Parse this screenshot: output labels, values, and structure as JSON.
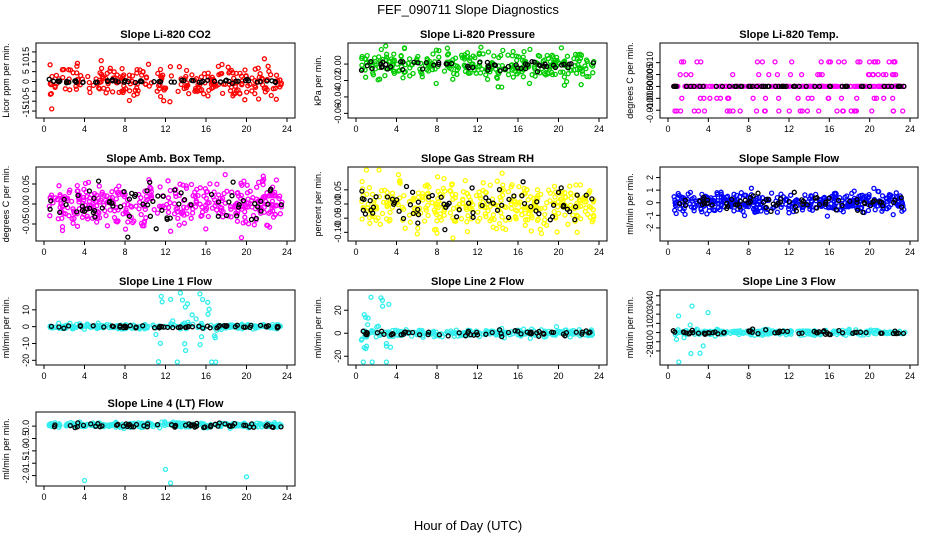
{
  "figure": {
    "title": "FEF_090711  Slope Diagnostics",
    "xlabel": "Hour of Day (UTC)"
  },
  "chart_data": [
    {
      "type": "scatter",
      "title": "Slope Li-820 CO2",
      "ylabel": "Licor ppm per min.",
      "color": "#ff0000",
      "xlim": [
        0,
        24
      ],
      "xticks": [
        0,
        4,
        8,
        12,
        16,
        20,
        24
      ],
      "ylim": [
        -17,
        18
      ],
      "yticks": [
        -15,
        -10,
        -5,
        0,
        5,
        10,
        15
      ],
      "ytick_labels": [
        "-15",
        "-10",
        "-5",
        "0",
        "5",
        "10",
        "15"
      ],
      "series": [
        {
          "color": "#ff0000",
          "baseline": 0,
          "spread": 4,
          "count": 260
        },
        {
          "color": "#000000",
          "baseline": 0,
          "spread": 0.4,
          "count": 60
        }
      ]
    },
    {
      "type": "scatter",
      "title": "Slope Li-820 Pressure",
      "ylabel": "kPa per min.",
      "color": "#00cc00",
      "xlim": [
        0,
        24
      ],
      "xticks": [
        0,
        4,
        8,
        12,
        16,
        20,
        24
      ],
      "ylim": [
        -0.062,
        0.022
      ],
      "yticks": [
        -0.06,
        -0.04,
        -0.02,
        0.0
      ],
      "ytick_labels": [
        "-0.06",
        "-0.04",
        "-0.02",
        "0.00"
      ],
      "series": [
        {
          "color": "#00cc00",
          "baseline": -0.002,
          "spread": 0.009,
          "count": 320
        },
        {
          "color": "#000000",
          "baseline": -0.002,
          "spread": 0.003,
          "count": 60
        }
      ]
    },
    {
      "type": "scatter",
      "title": "Slope Li-820 Temp.",
      "ylabel": "degrees C per min.",
      "color": "#ff00ff",
      "xlim": [
        0,
        24
      ],
      "xticks": [
        0,
        4,
        8,
        12,
        16,
        20,
        24
      ],
      "ylim": [
        -0.012,
        0.017
      ],
      "yticks": [
        -0.01,
        -0.005,
        0,
        0.005,
        0.01
      ],
      "ytick_labels": [
        "-0.010",
        "-0.005",
        "0.000",
        "0.005",
        "0.010"
      ],
      "series": [
        {
          "color": "#ff00ff",
          "baseline": 0,
          "spread": 0,
          "count": 320,
          "levels": [
            -0.005,
            0.005,
            0.0103,
            -0.0103
          ]
        },
        {
          "color": "#000000",
          "baseline": 0,
          "spread": 0,
          "count": 60
        }
      ]
    },
    {
      "type": "scatter",
      "title": "Slope Amb. Box Temp.",
      "ylabel": "degrees C per min.",
      "color": "#ff00ff",
      "xlim": [
        0,
        24
      ],
      "xticks": [
        0,
        4,
        8,
        12,
        16,
        20,
        24
      ],
      "ylim": [
        -0.085,
        0.085
      ],
      "yticks": [
        -0.05,
        0,
        0.05
      ],
      "ytick_labels": [
        "-0.05",
        "0.00",
        "0.05"
      ],
      "series": [
        {
          "color": "#ff00ff",
          "baseline": 0,
          "spread": 0.028,
          "count": 380
        },
        {
          "color": "#000000",
          "baseline": 0,
          "spread": 0.022,
          "count": 70
        }
      ]
    },
    {
      "type": "scatter",
      "title": "Slope Gas Stream RH",
      "ylabel": "percent per min.",
      "color": "#ffff00",
      "xlim": [
        0,
        24
      ],
      "xticks": [
        0,
        4,
        8,
        12,
        16,
        20,
        24
      ],
      "ylim": [
        -0.12,
        0.12
      ],
      "yticks": [
        -0.1,
        -0.05,
        0,
        0.05
      ],
      "ytick_labels": [
        "-0.10",
        "-0.05",
        "0.00",
        "0.05"
      ],
      "series": [
        {
          "color": "#ffff00",
          "baseline": 0,
          "spread": 0.04,
          "count": 380
        },
        {
          "color": "#000000",
          "baseline": 0,
          "spread": 0.03,
          "count": 70
        }
      ]
    },
    {
      "type": "scatter",
      "title": "Slope Sample Flow",
      "ylabel": "ml/min per min.",
      "color": "#0000ff",
      "xlim": [
        0,
        24
      ],
      "xticks": [
        0,
        4,
        8,
        12,
        16,
        20,
        24
      ],
      "ylim": [
        -2.8,
        2.6
      ],
      "yticks": [
        -2,
        -1,
        0,
        1,
        2
      ],
      "ytick_labels": [
        "-2",
        "-1",
        "0",
        "1",
        "2"
      ],
      "series": [
        {
          "color": "#0000ff",
          "baseline": 0,
          "spread": 0.4,
          "count": 380
        },
        {
          "color": "#000000",
          "baseline": 0,
          "spread": 0.3,
          "count": 70
        }
      ]
    },
    {
      "type": "scatter",
      "title": "Slope Line 1 Flow",
      "ylabel": "ml/min per min.",
      "color": "#33eeee",
      "xlim": [
        0,
        24
      ],
      "xticks": [
        0,
        4,
        8,
        12,
        16,
        20,
        24
      ],
      "ylim": [
        -21,
        20
      ],
      "yticks": [
        -20,
        -10,
        0,
        10
      ],
      "ytick_labels": [
        "-20",
        "-10",
        "0",
        "10"
      ],
      "series": [
        {
          "color": "#33eeee",
          "baseline": 0,
          "spread": 0.8,
          "count": 260,
          "burst": [
            11,
            17,
            12
          ]
        },
        {
          "color": "#000000",
          "baseline": 0,
          "spread": 0.5,
          "count": 60
        }
      ]
    },
    {
      "type": "scatter",
      "title": "Slope Line 2 Flow",
      "ylabel": "ml/min per min.",
      "color": "#33eeee",
      "xlim": [
        0,
        24
      ],
      "xticks": [
        0,
        4,
        8,
        12,
        16,
        20,
        24
      ],
      "ylim": [
        -25,
        35
      ],
      "yticks": [
        -20,
        0,
        20
      ],
      "ytick_labels": [
        "-20",
        "0",
        "20"
      ],
      "series": [
        {
          "color": "#33eeee",
          "baseline": 0,
          "spread": 1.5,
          "count": 260,
          "burst": [
            0.5,
            3.5,
            18
          ]
        },
        {
          "color": "#000000",
          "baseline": 0,
          "spread": 1.2,
          "count": 60
        }
      ]
    },
    {
      "type": "scatter",
      "title": "Slope Line 3 Flow",
      "ylabel": "ml/min per min.",
      "color": "#33eeee",
      "xlim": [
        0,
        24
      ],
      "xticks": [
        0,
        4,
        8,
        12,
        16,
        20,
        24
      ],
      "ylim": [
        -32,
        43
      ],
      "yticks": [
        -20,
        -10,
        0,
        10,
        20,
        30,
        40
      ],
      "ytick_labels": [
        "-20",
        "-10",
        "0",
        "10",
        "20",
        "30",
        "40"
      ],
      "series": [
        {
          "color": "#33eeee",
          "baseline": 0,
          "spread": 1.5,
          "count": 260,
          "burst": [
            0.5,
            4,
            20
          ]
        },
        {
          "color": "#000000",
          "baseline": 0,
          "spread": 1.2,
          "count": 60
        }
      ]
    },
    {
      "type": "scatter",
      "title": "Slope Line 4 (LT) Flow",
      "ylabel": "ml/min per min.",
      "color": "#33eeee",
      "xlim": [
        0,
        24
      ],
      "xticks": [
        0,
        4,
        8,
        12,
        16,
        20,
        24
      ],
      "ylim": [
        -2.3,
        0.45
      ],
      "yticks": [
        -2,
        -1.5,
        -1,
        -0.5,
        0
      ],
      "ytick_labels": [
        "-2.0",
        "-1.5",
        "-1.0",
        "-0.5",
        "0.0"
      ],
      "series": [
        {
          "color": "#33eeee",
          "baseline": 0.05,
          "spread": 0.05,
          "count": 300
        },
        {
          "color": "#000000",
          "baseline": 0.02,
          "spread": 0.04,
          "count": 60
        }
      ],
      "outliers": [
        [
          12,
          -1.75
        ],
        [
          4,
          -2.2
        ],
        [
          20,
          -2.05
        ],
        [
          12.5,
          -2.3
        ]
      ]
    }
  ]
}
